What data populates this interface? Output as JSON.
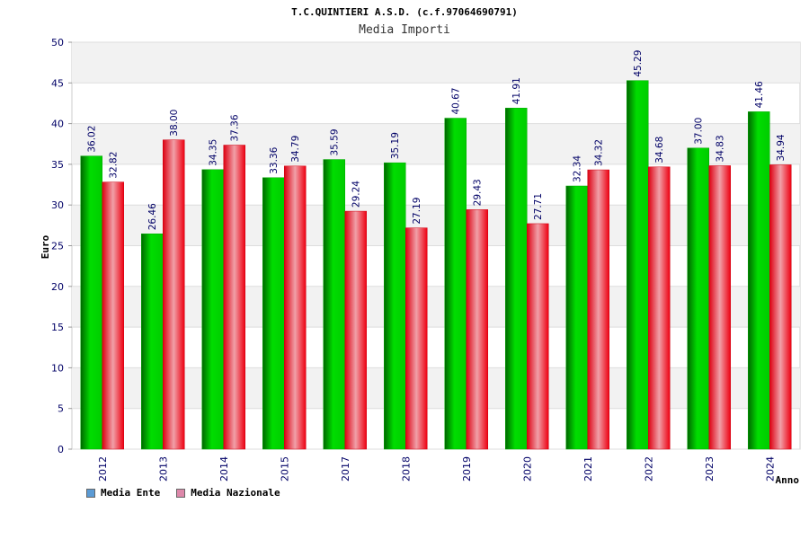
{
  "chart_data": {
    "type": "bar",
    "title": "T.C.QUINTIERI A.S.D. (c.f.97064690791)",
    "subtitle": "Media Importi",
    "xlabel": "Anno",
    "ylabel": "Euro",
    "ylim": [
      0,
      50
    ],
    "yticks": [
      "0",
      "5",
      "10",
      "15",
      "20",
      "25",
      "30",
      "35",
      "40",
      "45",
      "50"
    ],
    "grid": true,
    "legend_position": "bottom-left",
    "categories": [
      "2012",
      "2013",
      "2014",
      "2015",
      "2017",
      "2018",
      "2019",
      "2020",
      "2021",
      "2022",
      "2023",
      "2024"
    ],
    "series": [
      {
        "name": "Media Ente",
        "color": "#00cc00",
        "legend_color": "#5b9bd5",
        "values": [
          36.02,
          26.46,
          34.35,
          33.36,
          35.59,
          35.19,
          40.67,
          41.91,
          32.34,
          45.29,
          37.0,
          41.46
        ],
        "labels": [
          "36.02",
          "26.46",
          "34.35",
          "33.36",
          "35.59",
          "35.19",
          "40.67",
          "41.91",
          "32.34",
          "45.29",
          "37.00",
          "41.46"
        ]
      },
      {
        "name": "Media Nazionale",
        "color": "#ee1122",
        "legend_color": "#dd88aa",
        "values": [
          32.82,
          38.0,
          37.36,
          34.79,
          29.24,
          27.19,
          29.43,
          27.71,
          34.32,
          34.68,
          34.83,
          34.94
        ],
        "labels": [
          "32.82",
          "38.00",
          "37.36",
          "34.79",
          "29.24",
          "27.19",
          "29.43",
          "27.71",
          "34.32",
          "34.68",
          "34.83",
          "34.94"
        ]
      }
    ]
  }
}
